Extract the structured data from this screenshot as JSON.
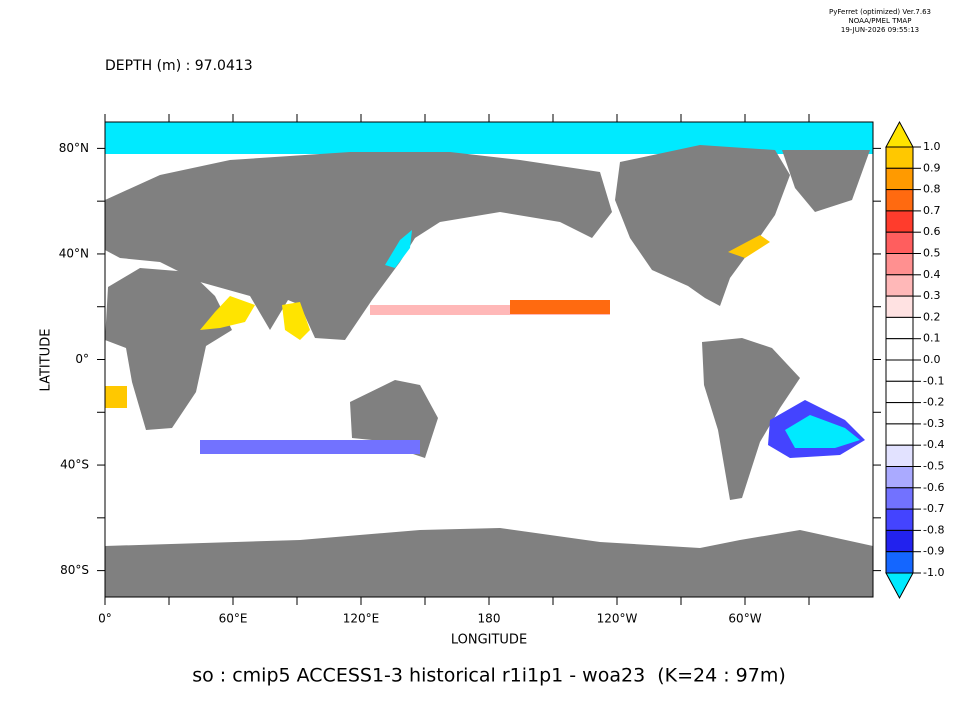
{
  "chart_data": {
    "type": "map",
    "header_lines": [
      "PyFerret (optimized) Ver.7.63",
      "NOAA/PMEL TMAP",
      "19-JUN-2026 09:55:13"
    ],
    "subtitle": "DEPTH (m) : 97.0413",
    "title": "so : cmip5 ACCESS1-3 historical r1i1p1 - woa23  (K=24 : 97m)",
    "xlabel": "LONGITUDE",
    "ylabel": "LATITUDE",
    "xlim": [
      0,
      360
    ],
    "ylim": [
      -90,
      90
    ],
    "xticks": [
      {
        "value": 0,
        "label": "0°"
      },
      {
        "value": 60,
        "label": "60°E"
      },
      {
        "value": 120,
        "label": "120°E"
      },
      180,
      {
        "value": 240,
        "label": "120°W"
      },
      {
        "value": 300,
        "label": "60°W"
      }
    ],
    "xminorticks": [
      30,
      90,
      150,
      210,
      270,
      330
    ],
    "yticks": [
      {
        "value": 80,
        "label": "80°N"
      },
      {
        "value": 40,
        "label": "40°N"
      },
      {
        "value": 0,
        "label": "0°"
      },
      {
        "value": -40,
        "label": "40°S"
      },
      {
        "value": -80,
        "label": "80°S"
      }
    ],
    "yminorticks": [
      60,
      20,
      -20,
      -60
    ],
    "colorbar": {
      "levels": [
        {
          "value": 1,
          "label": "1.0"
        },
        0.9,
        0.8,
        0.7,
        0.6,
        0.5,
        0.4,
        0.3,
        0.2,
        0.1,
        {
          "value": 0,
          "label": "0.0"
        },
        -0.1,
        -0.2,
        -0.3,
        -0.4,
        -0.5,
        -0.6,
        -0.7,
        -0.8,
        -0.9,
        {
          "value": -1,
          "label": "-1.0"
        }
      ],
      "colors": [
        "#ffe400",
        "#ffc800",
        "#ff9a00",
        "#ff6a10",
        "#ff3c2c",
        "#ff5e5e",
        "#ff9090",
        "#ffb8b8",
        "#ffe2e2",
        "#ffffff",
        "#ffffff",
        "#ffffff",
        "#ffffff",
        "#ffffff",
        "#ffffff",
        "#e2e2ff",
        "#aaaaff",
        "#7272ff",
        "#4444ff",
        "#2222ee",
        "#1466ff",
        "#10a4ff",
        "#00eaff"
      ]
    }
  }
}
